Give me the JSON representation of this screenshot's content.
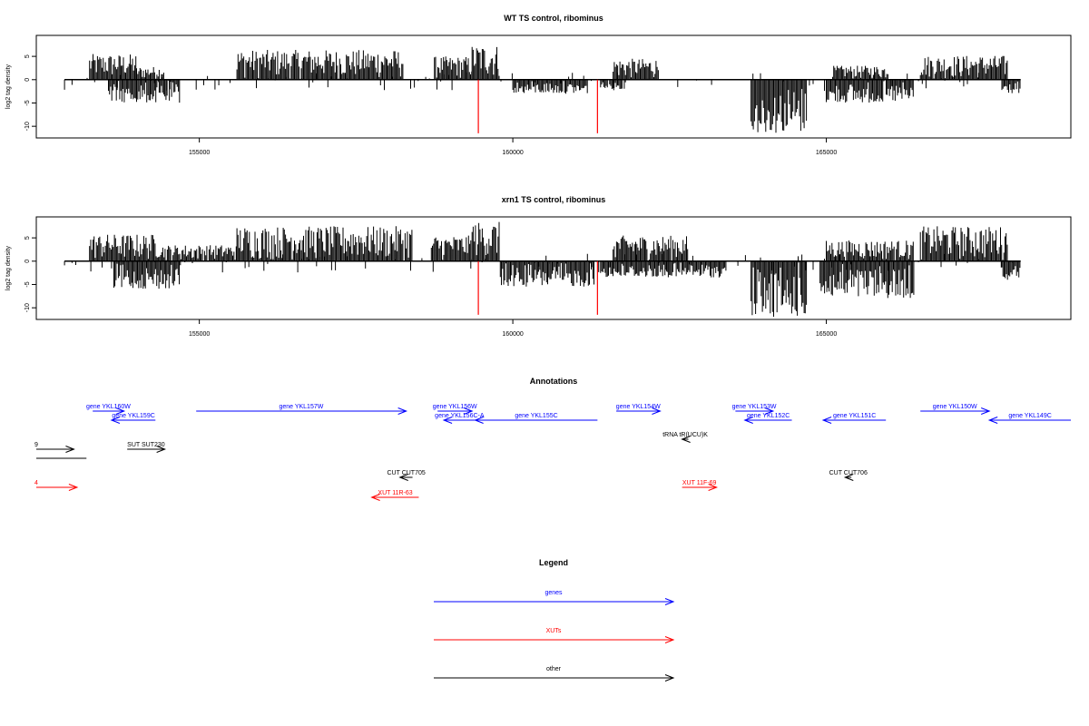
{
  "chart_data": [
    {
      "type": "bar",
      "title": "WT TS control, ribominus",
      "ylabel": "log2 tag density",
      "xlim": [
        152400,
        168900
      ],
      "ylim": [
        -12.5,
        9.5
      ],
      "x_ticks": [
        155000,
        160000,
        165000
      ],
      "x_tick_labels": [
        "155000",
        "160000",
        "165000"
      ],
      "y_ticks": [
        -10,
        -5,
        0,
        5
      ],
      "y_tick_labels": [
        "-10",
        "-5",
        "0",
        "5"
      ],
      "baseline": {
        "from": 152850,
        "to": 168100
      },
      "positive_regions": [
        {
          "from": 153250,
          "to": 154000,
          "max": 5.5
        },
        {
          "from": 154000,
          "to": 154450,
          "max": 2.8
        },
        {
          "from": 155600,
          "to": 158250,
          "max": 6.4
        },
        {
          "from": 158750,
          "to": 159350,
          "max": 5.0
        },
        {
          "from": 159350,
          "to": 159800,
          "max": 7.5
        },
        {
          "from": 161600,
          "to": 162350,
          "max": 4.5
        },
        {
          "from": 165100,
          "to": 166000,
          "max": 3.0
        },
        {
          "from": 166500,
          "to": 167900,
          "max": 5.2
        }
      ],
      "negative_regions": [
        {
          "from": 153550,
          "to": 154700,
          "min": -5.0
        },
        {
          "from": 160000,
          "to": 161200,
          "min": -3.0
        },
        {
          "from": 161400,
          "to": 161800,
          "min": -2.0
        },
        {
          "from": 163800,
          "to": 164700,
          "min": -11.5
        },
        {
          "from": 165000,
          "to": 166400,
          "min": -5.0
        },
        {
          "from": 167800,
          "to": 168100,
          "min": -3.0
        }
      ],
      "highlighted_positions": [
        {
          "x": 159450,
          "value": -11.5,
          "color": "#ff0000"
        },
        {
          "x": 161350,
          "value": -11.5,
          "color": "#ff0000"
        }
      ]
    },
    {
      "type": "bar",
      "title": "xrn1 TS control, ribominus",
      "ylabel": "log2 tag density",
      "xlim": [
        152400,
        168900
      ],
      "ylim": [
        -12.5,
        9.5
      ],
      "x_ticks": [
        155000,
        160000,
        165000
      ],
      "x_tick_labels": [
        "155000",
        "160000",
        "165000"
      ],
      "y_ticks": [
        -10,
        -5,
        0,
        5
      ],
      "y_tick_labels": [
        "-10",
        "-5",
        "0",
        "5"
      ],
      "baseline": {
        "from": 152850,
        "to": 168100
      },
      "positive_regions": [
        {
          "from": 153250,
          "to": 154400,
          "max": 5.8
        },
        {
          "from": 154400,
          "to": 155600,
          "max": 3.5
        },
        {
          "from": 155600,
          "to": 158400,
          "max": 7.5
        },
        {
          "from": 158700,
          "to": 159350,
          "max": 5.5
        },
        {
          "from": 159350,
          "to": 159800,
          "max": 8.5
        },
        {
          "from": 161600,
          "to": 162800,
          "max": 5.5
        },
        {
          "from": 165000,
          "to": 166400,
          "max": 4.5
        },
        {
          "from": 166500,
          "to": 167900,
          "max": 7.5
        }
      ],
      "negative_regions": [
        {
          "from": 153600,
          "to": 154700,
          "min": -6.0
        },
        {
          "from": 159800,
          "to": 161300,
          "min": -5.5
        },
        {
          "from": 161400,
          "to": 163400,
          "min": -3.5
        },
        {
          "from": 163800,
          "to": 164700,
          "min": -12.0
        },
        {
          "from": 164900,
          "to": 166400,
          "min": -8.0
        },
        {
          "from": 167800,
          "to": 168100,
          "min": -4.0
        }
      ],
      "highlighted_positions": [
        {
          "x": 159450,
          "value": -11.5,
          "color": "#ff0000"
        },
        {
          "x": 161350,
          "value": -11.5,
          "color": "#ff0000"
        }
      ]
    },
    {
      "type": "diagram",
      "title": "Annotations",
      "xlim": [
        152400,
        168900
      ],
      "features": [
        {
          "label": "gene YKL160W",
          "type": "genes",
          "from": 153300,
          "to": 153800,
          "strand": "+",
          "row": 0
        },
        {
          "label": "gene YKL159C",
          "type": "genes",
          "from": 153600,
          "to": 154300,
          "strand": "-",
          "row": 1
        },
        {
          "label": "gene YKL157W",
          "type": "genes",
          "from": 154950,
          "to": 158300,
          "strand": "+",
          "row": 0
        },
        {
          "label": "gene YKL156W",
          "type": "genes",
          "from": 158800,
          "to": 159350,
          "strand": "+",
          "row": 0
        },
        {
          "label": "gene YKL156C-A",
          "type": "genes",
          "from": 158900,
          "to": 159400,
          "strand": "-",
          "row": 1
        },
        {
          "label": "gene YKL155C",
          "type": "genes",
          "from": 159400,
          "to": 161350,
          "strand": "-",
          "row": 1
        },
        {
          "label": "gene YKL154W",
          "type": "genes",
          "from": 161650,
          "to": 162350,
          "strand": "+",
          "row": 0
        },
        {
          "label": "gene YKL153W",
          "type": "genes",
          "from": 163550,
          "to": 164150,
          "strand": "+",
          "row": 0
        },
        {
          "label": "gene YKL152C",
          "type": "genes",
          "from": 163700,
          "to": 164450,
          "strand": "-",
          "row": 1
        },
        {
          "label": "gene YKL151C",
          "type": "genes",
          "from": 164950,
          "to": 165950,
          "strand": "-",
          "row": 1
        },
        {
          "label": "gene YKL150W",
          "type": "genes",
          "from": 166500,
          "to": 167600,
          "strand": "+",
          "row": 0
        },
        {
          "label": "gene YKL149C",
          "type": "genes",
          "from": 167600,
          "to": 168900,
          "strand": "-",
          "row": 1
        },
        {
          "label": "tRNA tR(UCU)K",
          "type": "other",
          "from": 162700,
          "to": 162800,
          "strand": "-",
          "row": 2
        },
        {
          "label": "9",
          "type": "other",
          "from": 152400,
          "to": 153000,
          "strand": "+",
          "row": 3
        },
        {
          "label": "",
          "type": "other",
          "from": 152400,
          "to": 153200,
          "strand": "none",
          "row": 4
        },
        {
          "label": "SUT SUT230",
          "type": "other",
          "from": 153850,
          "to": 154450,
          "strand": "+",
          "row": 3
        },
        {
          "label": "CUT CUT705",
          "type": "other",
          "from": 158200,
          "to": 158400,
          "strand": "-",
          "row": 5
        },
        {
          "label": "CUT CUT706",
          "type": "other",
          "from": 165300,
          "to": 165400,
          "strand": "-",
          "row": 5
        },
        {
          "label": "XUT 11R-63",
          "type": "XUTs",
          "from": 157750,
          "to": 158500,
          "strand": "-",
          "row": 7
        },
        {
          "label": "XUT 11F-69",
          "type": "XUTs",
          "from": 162700,
          "to": 163250,
          "strand": "+",
          "row": 6
        },
        {
          "label": "4",
          "type": "XUTs",
          "from": 152400,
          "to": 153050,
          "strand": "+",
          "row": 6
        }
      ]
    }
  ],
  "legend": {
    "title": "Legend",
    "items": [
      {
        "label": "genes",
        "color": "#0000ff"
      },
      {
        "label": "XUTs",
        "color": "#ff0000"
      },
      {
        "label": "other",
        "color": "#000000"
      }
    ]
  },
  "colors": {
    "genes": "#0000ff",
    "XUTs": "#ff0000",
    "other": "#000000",
    "signal": "#000000",
    "frame": "#000000"
  }
}
